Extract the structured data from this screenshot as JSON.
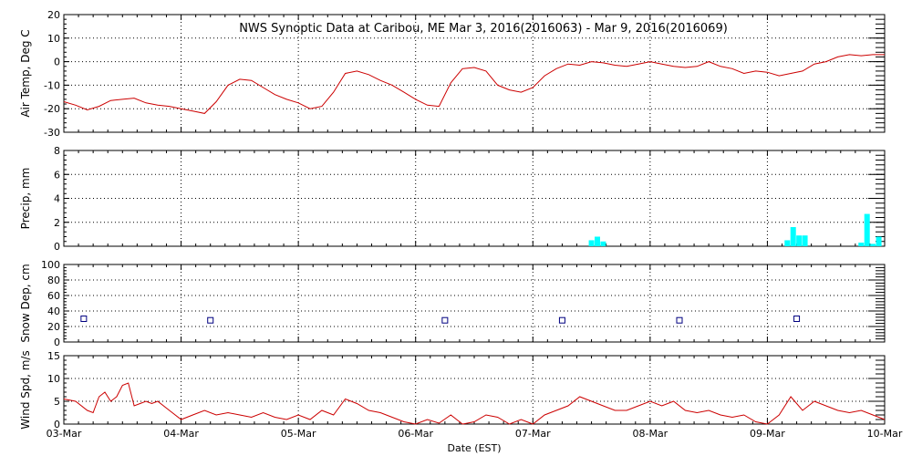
{
  "title": "NWS Synoptic Data at Caribou, ME   Mar  3, 2016(2016063) - Mar  9, 2016(2016069)",
  "xlabel": "Date (EST)",
  "x_ticks": [
    "03-Mar",
    "04-Mar",
    "05-Mar",
    "06-Mar",
    "07-Mar",
    "08-Mar",
    "09-Mar",
    "10-Mar"
  ],
  "colors": {
    "line": "#cc0000",
    "precip": "#00ffff",
    "snow": "#000080",
    "grid": "#000000"
  },
  "chart_data": [
    {
      "type": "line",
      "ylabel": "Air Temp, Deg C",
      "ylim": [
        -30,
        20
      ],
      "yticks": [
        "20",
        "10",
        "0",
        "-10",
        "-20",
        "-30"
      ],
      "grid": true,
      "series": [
        {
          "x": [
            0,
            0.1,
            0.2,
            0.3,
            0.4,
            0.5,
            0.6,
            0.7,
            0.8,
            0.9,
            1.0,
            1.1,
            1.2,
            1.3,
            1.4,
            1.5,
            1.6,
            1.7,
            1.8,
            1.9,
            2.0,
            2.1,
            2.2,
            2.3,
            2.4,
            2.5,
            2.6,
            2.7,
            2.8,
            2.9,
            3.0,
            3.1,
            3.2,
            3.3,
            3.4,
            3.5,
            3.6,
            3.7,
            3.8,
            3.9,
            4.0,
            4.1,
            4.2,
            4.3,
            4.4,
            4.5,
            4.6,
            4.7,
            4.8,
            4.9,
            5.0,
            5.1,
            5.2,
            5.3,
            5.4,
            5.5,
            5.6,
            5.7,
            5.8,
            5.9,
            6.0,
            6.1,
            6.2,
            6.3,
            6.4,
            6.5,
            6.6,
            6.7,
            6.8,
            6.9,
            7.0
          ],
          "values": [
            -17,
            -18.5,
            -20.5,
            -19,
            -16.5,
            -16,
            -15.5,
            -17.5,
            -18.5,
            -19,
            -20,
            -21,
            -22,
            -17,
            -10,
            -7.5,
            -8,
            -11,
            -14,
            -16,
            -17.5,
            -20,
            -19,
            -13,
            -5,
            -4,
            -5.5,
            -8,
            -10,
            -13,
            -16,
            -18.5,
            -19,
            -9,
            -3,
            -2.5,
            -4,
            -10,
            -12,
            -13,
            -11,
            -6,
            -3,
            -1,
            -1.5,
            0,
            -0.5,
            -1.5,
            -2,
            -1,
            0,
            -1,
            -2,
            -2.5,
            -2,
            0,
            -2,
            -3,
            -5,
            -4,
            -4.5,
            -6,
            -5,
            -4,
            -1,
            0,
            2,
            3,
            2.5,
            3,
            3
          ]
        }
      ]
    },
    {
      "type": "bar",
      "ylabel": "Precip, mm",
      "ylim": [
        0,
        8
      ],
      "yticks": [
        "8",
        "6",
        "4",
        "2",
        "0"
      ],
      "grid": true,
      "series": [
        {
          "x": [
            4.5,
            4.55,
            4.6,
            6.17,
            6.22,
            6.27,
            6.32,
            6.8,
            6.85,
            6.9,
            6.95
          ],
          "values": [
            0.5,
            0.8,
            0.4,
            0.5,
            1.6,
            0.9,
            0.9,
            0.3,
            2.7,
            0.2,
            0.8
          ]
        }
      ]
    },
    {
      "type": "scatter",
      "ylabel": "Snow Dep, cm",
      "ylim": [
        0,
        100
      ],
      "yticks": [
        "100",
        "80",
        "60",
        "40",
        "20",
        "0"
      ],
      "grid": true,
      "series": [
        {
          "x": [
            0.17,
            1.25,
            3.25,
            4.25,
            5.25,
            6.25
          ],
          "values": [
            30,
            28,
            28,
            28,
            28,
            30
          ]
        }
      ]
    },
    {
      "type": "line",
      "ylabel": "Wind Spd, m/s",
      "ylim": [
        0,
        15
      ],
      "yticks": [
        "15",
        "10",
        "5",
        "0"
      ],
      "grid": true,
      "series": [
        {
          "x": [
            0,
            0.1,
            0.2,
            0.25,
            0.3,
            0.35,
            0.4,
            0.45,
            0.5,
            0.55,
            0.6,
            0.65,
            0.7,
            0.75,
            0.8,
            0.9,
            1.0,
            1.1,
            1.2,
            1.3,
            1.4,
            1.5,
            1.6,
            1.7,
            1.8,
            1.9,
            2.0,
            2.1,
            2.2,
            2.3,
            2.4,
            2.5,
            2.6,
            2.7,
            2.8,
            2.9,
            3.0,
            3.1,
            3.2,
            3.3,
            3.4,
            3.5,
            3.6,
            3.7,
            3.8,
            3.9,
            4.0,
            4.1,
            4.2,
            4.3,
            4.4,
            4.5,
            4.6,
            4.7,
            4.8,
            4.9,
            5.0,
            5.1,
            5.2,
            5.3,
            5.4,
            5.5,
            5.6,
            5.7,
            5.8,
            5.9,
            6.0,
            6.1,
            6.2,
            6.3,
            6.4,
            6.5,
            6.6,
            6.7,
            6.8,
            6.9,
            7.0
          ],
          "values": [
            5.5,
            5,
            3,
            2.5,
            6,
            7,
            5,
            6,
            8.5,
            9,
            4,
            4.5,
            5,
            4.5,
            5,
            3,
            1,
            2,
            3,
            2,
            2.5,
            2,
            1.5,
            2.5,
            1.5,
            1,
            2,
            1,
            3,
            2,
            5.5,
            4.5,
            3,
            2.5,
            1.5,
            0.5,
            0,
            1,
            0.2,
            2,
            0,
            0.5,
            2,
            1.5,
            0,
            1,
            0,
            2,
            3,
            4,
            6,
            5,
            4,
            3,
            3,
            4,
            5,
            4,
            5,
            3,
            2.5,
            3,
            2,
            1.5,
            2,
            0.5,
            0,
            2,
            6,
            3,
            5,
            4,
            3,
            2.5,
            3,
            2,
            1
          ]
        }
      ]
    }
  ]
}
